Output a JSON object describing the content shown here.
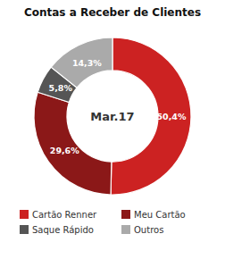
{
  "chart_data": {
    "type": "donut",
    "title": "Contas a Receber de Clientes",
    "categories": [
      "Cartão Renner",
      "Meu Cartão",
      "Saque Rápido",
      "Outros"
    ],
    "values": [
      50.4,
      29.6,
      5.8,
      14.3
    ],
    "value_labels": [
      "50,4%",
      "29,6%",
      "5,8%",
      "14,3%"
    ],
    "data_labels": true,
    "colors": [
      "#cc2222",
      "#8b1818",
      "#555555",
      "#aaaaaa"
    ],
    "annotations": [
      "Mar.17"
    ],
    "legend": "bottom"
  }
}
